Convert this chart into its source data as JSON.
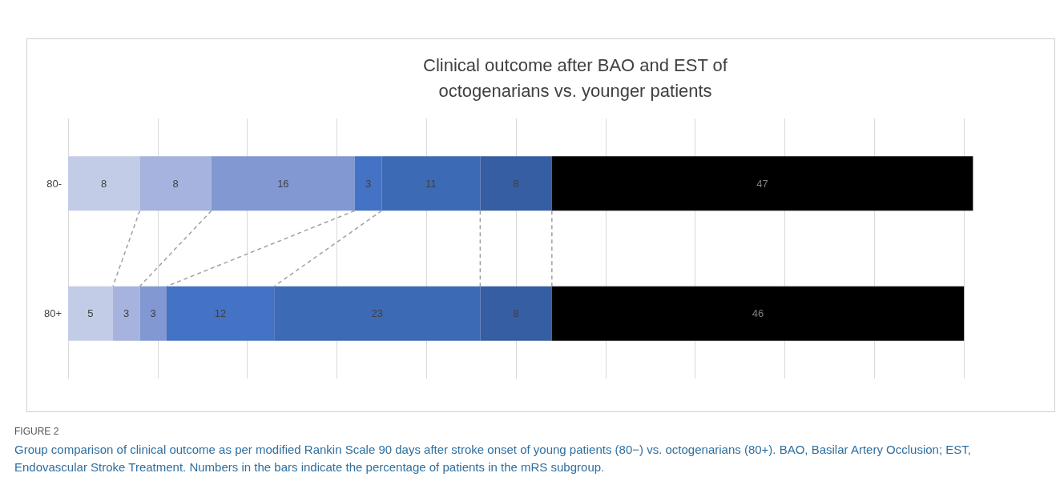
{
  "chart_data": {
    "type": "bar",
    "orientation": "horizontal",
    "stacked": true,
    "title": "Clinical outcome after BAO and EST of\noctogenarians vs. younger patients",
    "categories": [
      "80-",
      "80+"
    ],
    "series": [
      {
        "color": "#c3cce6",
        "values": [
          8,
          5
        ]
      },
      {
        "color": "#a5b3de",
        "values": [
          8,
          3
        ]
      },
      {
        "color": "#8198d3",
        "values": [
          16,
          3
        ]
      },
      {
        "color": "#4472c4",
        "values": [
          3,
          12
        ]
      },
      {
        "color": "#3d6ab5",
        "values": [
          11,
          23
        ]
      },
      {
        "color": "#355ea3",
        "values": [
          8,
          8
        ]
      },
      {
        "color": "#000000",
        "values": [
          47,
          46
        ]
      }
    ],
    "xlim": [
      0,
      110
    ],
    "xticks": [
      {
        "value": 0,
        "label": null
      },
      {
        "value": 10,
        "label": null
      },
      {
        "value": 20,
        "label": null
      },
      {
        "value": 30,
        "label": null
      },
      {
        "value": 40,
        "label": null
      },
      {
        "value": 50,
        "label": null
      },
      {
        "value": 60,
        "label": null
      },
      {
        "value": 70,
        "label": null
      },
      {
        "value": 80,
        "label": null
      },
      {
        "value": 90,
        "label": null
      },
      {
        "value": 100,
        "label": null
      },
      {
        "value": 110,
        "label": null
      }
    ],
    "grid": "x",
    "tick_labels": "y",
    "data_labels": true,
    "annotations": [
      "FIGURE 2",
      "Group comparison of clinical outcome as per modified Rankin Scale 90 days after stroke onset of young patients (80−) vs. octogenarians (80+). BAO, Basilar Artery Occlusion; EST, Endovascular Stroke Treatment. Numbers in the bars indicate the percentage of patients in the mRS subgroup."
    ]
  }
}
